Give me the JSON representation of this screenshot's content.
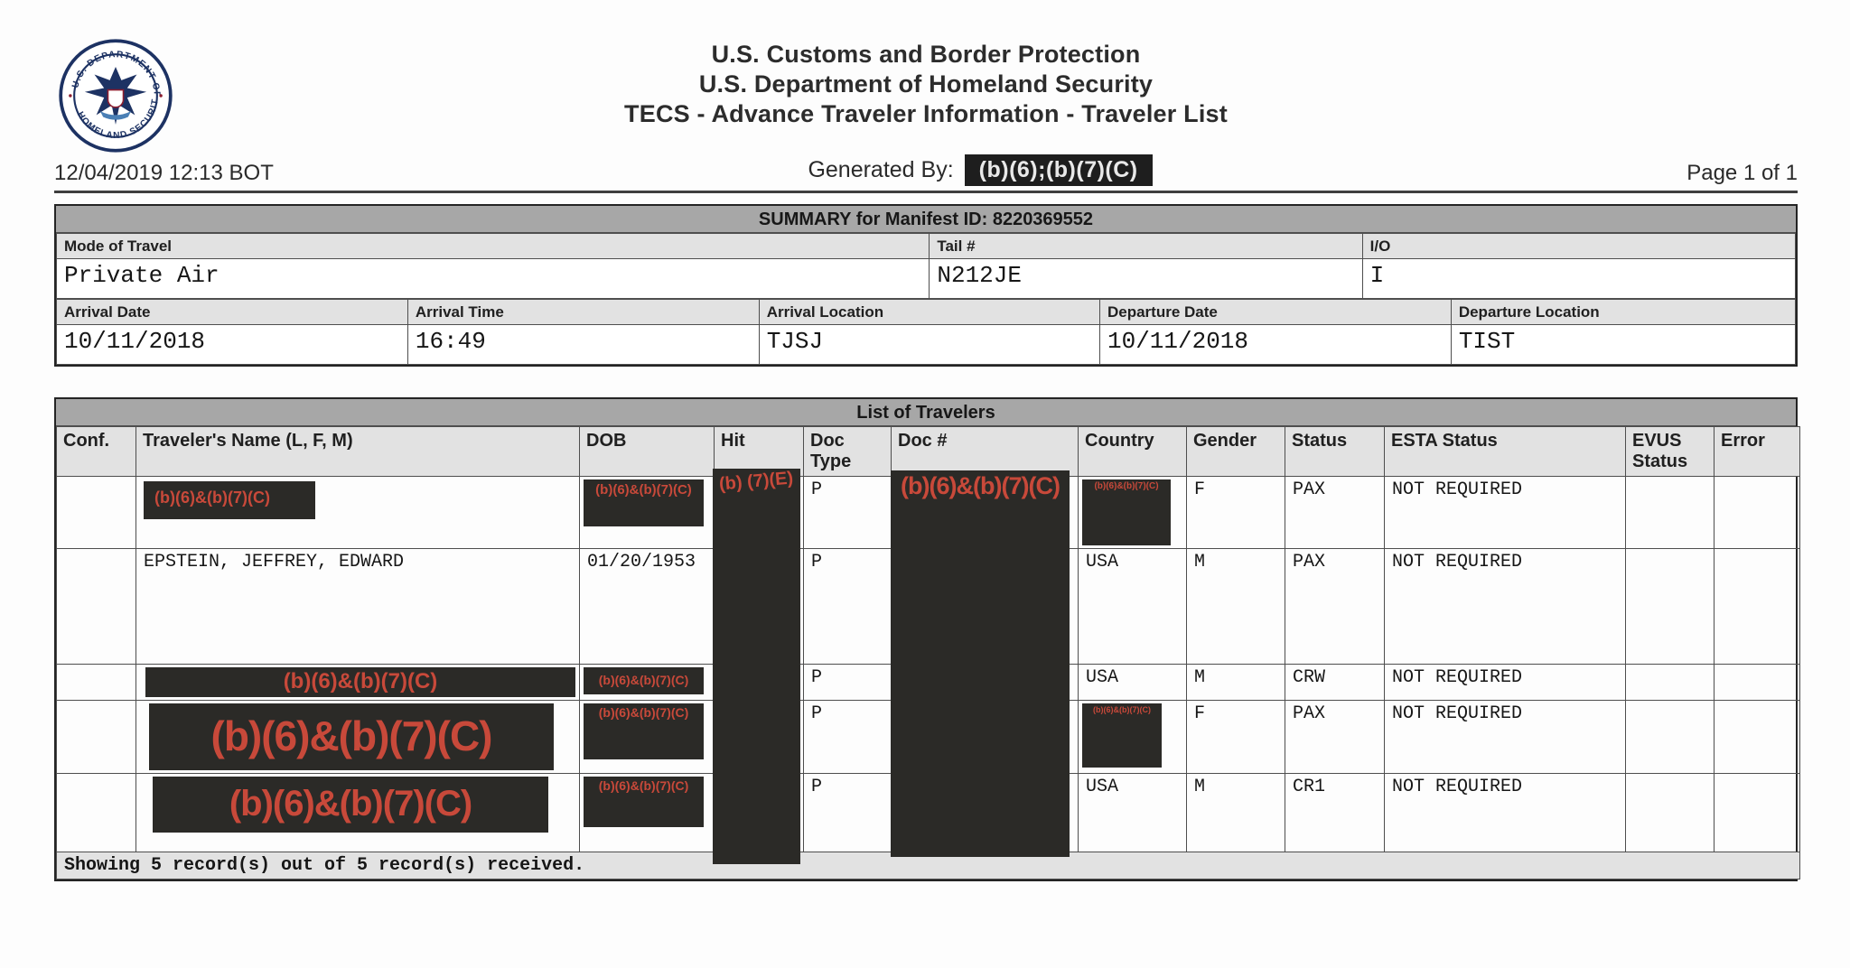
{
  "colors": {
    "redaction_bg": "#2b2a27",
    "redaction_text": "#c8493a",
    "header_bar_gray": "#a7a7a7",
    "label_row_gray": "#e2e2e2"
  },
  "header": {
    "seal_top_text": "U.S. DEPARTMENT OF",
    "seal_bottom_text": "HOMELAND SECURITY",
    "agency_line1": "U.S. Customs and Border Protection",
    "agency_line2": "U.S. Department of Homeland Security",
    "agency_line3": "TECS - Advance Traveler Information - Traveler List",
    "timestamp": "12/04/2019 12:13 BOT",
    "generated_by_label": "Generated By:",
    "generated_by_value": "(b)(6);(b)(7)(C)",
    "page": "Page 1 of 1"
  },
  "summary": {
    "title": "SUMMARY for Manifest ID: 8220369552",
    "row1": [
      {
        "label": "Mode of Travel",
        "value": "Private Air"
      },
      {
        "label": "Tail #",
        "value": "N212JE"
      },
      {
        "label": "I/O",
        "value": "I"
      }
    ],
    "row2": [
      {
        "label": "Arrival Date",
        "value": "10/11/2018"
      },
      {
        "label": "Arrival Time",
        "value": "16:49"
      },
      {
        "label": "Arrival Location",
        "value": "TJSJ"
      },
      {
        "label": "Departure Date",
        "value": "10/11/2018"
      },
      {
        "label": "Departure Location",
        "value": "TIST"
      }
    ]
  },
  "travelers": {
    "title": "List of Travelers",
    "columns": [
      "Conf.",
      "Traveler's Name (L, F, M)",
      "DOB",
      "Hit",
      "Doc Type",
      "Doc #",
      "Country",
      "Gender",
      "Status",
      "ESTA Status",
      "EVUS Status",
      "Error"
    ],
    "hit_redaction": "(b) (7)(E)",
    "doc_redaction": "(b)(6)&(b)(7)(C)",
    "rows": [
      {
        "conf": "",
        "name": {
          "redacted": true,
          "text": "(b)(6)&(b)(7)(C)"
        },
        "dob": {
          "redacted": true,
          "text": "(b)(6)&(b)(7)(C)"
        },
        "hit": "",
        "doc_type": "P",
        "doc_num": "",
        "country": {
          "redacted": true,
          "text": "(b)(6)&(b)(7)(C)"
        },
        "gender": "F",
        "status": "PAX",
        "esta": "NOT REQUIRED",
        "evus": "",
        "error": ""
      },
      {
        "conf": "",
        "name": "EPSTEIN, JEFFREY, EDWARD",
        "dob": "01/20/1953",
        "hit": "",
        "doc_type": "P",
        "doc_num": "",
        "country": "USA",
        "gender": "M",
        "status": "PAX",
        "esta": "NOT REQUIRED",
        "evus": "",
        "error": ""
      },
      {
        "conf": "",
        "name": {
          "redacted": true,
          "text": "(b)(6)&(b)(7)(C)"
        },
        "dob": {
          "redacted": true,
          "text": "(b)(6)&(b)(7)(C)"
        },
        "hit": "",
        "doc_type": "P",
        "doc_num": "",
        "country": "USA",
        "gender": "M",
        "status": "CRW",
        "esta": "NOT REQUIRED",
        "evus": "",
        "error": ""
      },
      {
        "conf": "",
        "name": {
          "redacted": true,
          "text": "(b)(6)&(b)(7)(C)"
        },
        "dob": {
          "redacted": true,
          "text": "(b)(6)&(b)(7)(C)"
        },
        "hit": "",
        "doc_type": "P",
        "doc_num": "",
        "country": {
          "redacted": true,
          "text": "(b)(6)&(b)(7)(C)"
        },
        "gender": "F",
        "status": "PAX",
        "esta": "NOT REQUIRED",
        "evus": "",
        "error": ""
      },
      {
        "conf": "",
        "name": {
          "redacted": true,
          "text": "(b)(6)&(b)(7)(C)"
        },
        "dob": {
          "redacted": true,
          "text": "(b)(6)&(b)(7)(C)"
        },
        "hit": "",
        "doc_type": "P",
        "doc_num": "",
        "country": "USA",
        "gender": "M",
        "status": "CR1",
        "esta": "NOT REQUIRED",
        "evus": "",
        "error": ""
      }
    ],
    "footer": "Showing 5 record(s) out of 5 record(s) received."
  }
}
